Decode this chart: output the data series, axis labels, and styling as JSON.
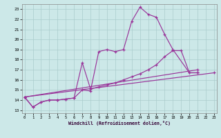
{
  "background_color": "#cce8e8",
  "grid_color": "#aacccc",
  "line_color": "#993399",
  "xlim": [
    -0.3,
    23.3
  ],
  "ylim": [
    12.7,
    23.5
  ],
  "yticks": [
    13,
    14,
    15,
    16,
    17,
    18,
    19,
    20,
    21,
    22,
    23
  ],
  "xticks": [
    0,
    1,
    2,
    3,
    4,
    5,
    6,
    7,
    8,
    9,
    10,
    11,
    12,
    13,
    14,
    15,
    16,
    17,
    18,
    19,
    20,
    21,
    22,
    23
  ],
  "xlabel": "Windchill (Refroidissement éolien,°C)",
  "series": [
    {
      "name": "line1_top_jagged",
      "x": [
        0,
        1,
        2,
        3,
        4,
        5,
        6,
        7,
        8,
        9,
        10,
        11,
        12,
        13,
        14,
        15,
        16,
        17,
        18,
        20,
        21
      ],
      "y": [
        14.3,
        13.3,
        13.8,
        14.0,
        14.0,
        14.1,
        14.2,
        15.0,
        14.9,
        18.8,
        19.0,
        18.8,
        19.0,
        21.8,
        23.2,
        22.5,
        22.2,
        20.5,
        19.0,
        16.7,
        16.7
      ]
    },
    {
      "name": "line2_mid_zigzag",
      "x": [
        0,
        1,
        2,
        3,
        4,
        5,
        6,
        7,
        8,
        9,
        10,
        11,
        12,
        13,
        14,
        15,
        16,
        17,
        18,
        19,
        20,
        21
      ],
      "y": [
        14.3,
        13.3,
        13.8,
        14.0,
        14.0,
        14.1,
        14.2,
        17.7,
        15.1,
        15.3,
        15.5,
        15.7,
        16.0,
        16.3,
        16.6,
        17.0,
        17.5,
        18.3,
        18.9,
        18.9,
        16.7,
        16.7
      ]
    },
    {
      "name": "line3_straight_upper",
      "x": [
        0,
        21
      ],
      "y": [
        14.3,
        17.0
      ]
    },
    {
      "name": "line4_straight_lower",
      "x": [
        0,
        23
      ],
      "y": [
        14.3,
        16.7
      ]
    }
  ]
}
